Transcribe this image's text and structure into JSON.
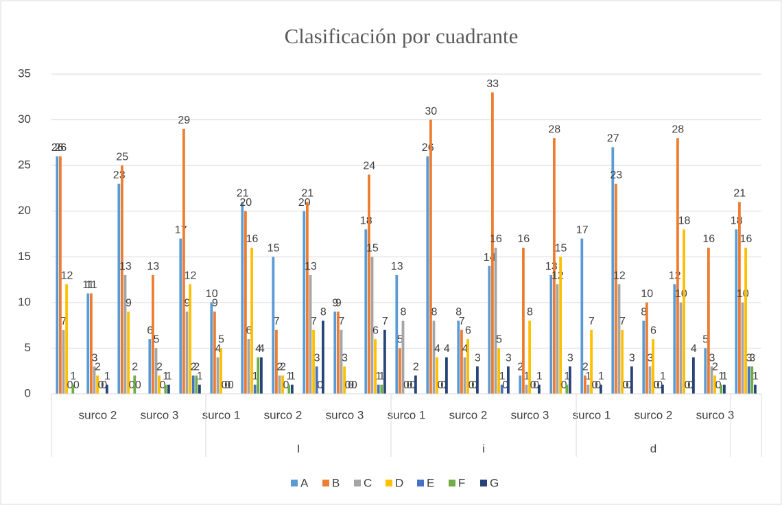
{
  "chart_data": {
    "type": "bar",
    "title": "Clasificación por cuadrante",
    "categories": [
      null,
      "surco 2",
      null,
      "surco 3",
      null,
      "surco 1",
      null,
      "surco 2",
      null,
      "surco 3",
      null,
      "surco 1",
      null,
      "surco 2",
      null,
      "surco 3",
      null,
      "surco 1",
      null,
      "surco 2",
      null,
      "surco 3",
      null
    ],
    "groups": [
      {
        "name": null,
        "size": 5
      },
      {
        "name": "I",
        "size": 6
      },
      {
        "name": "i",
        "size": 6
      },
      {
        "name": "d",
        "size": 5
      },
      {
        "name": null,
        "size": 1
      }
    ],
    "series": [
      {
        "name": "A",
        "color": "#5b9bd5",
        "values": [
          26,
          11,
          23,
          6,
          17,
          10,
          21,
          15,
          20,
          9,
          18,
          13,
          26,
          8,
          14,
          2,
          13,
          17,
          27,
          8,
          12,
          5,
          18
        ]
      },
      {
        "name": "B",
        "color": "#ed7d31",
        "values": [
          26,
          11,
          25,
          13,
          29,
          9,
          20,
          7,
          21,
          9,
          24,
          5,
          30,
          7,
          33,
          16,
          28,
          2,
          23,
          10,
          28,
          16,
          21
        ]
      },
      {
        "name": "C",
        "color": "#a5a5a5",
        "values": [
          7,
          3,
          13,
          5,
          9,
          4,
          6,
          2,
          13,
          7,
          15,
          8,
          8,
          4,
          16,
          1,
          12,
          1,
          12,
          3,
          10,
          3,
          10
        ]
      },
      {
        "name": "D",
        "color": "#ffc000",
        "values": [
          12,
          2,
          9,
          2,
          12,
          5,
          16,
          2,
          7,
          3,
          6,
          0,
          4,
          6,
          5,
          8,
          15,
          7,
          7,
          6,
          18,
          2,
          16
        ]
      },
      {
        "name": "E",
        "color": "#4472c4",
        "values": [
          0,
          0,
          0,
          0,
          2,
          0,
          1,
          0,
          3,
          0,
          1,
          0,
          0,
          0,
          1,
          0,
          0,
          0,
          0,
          0,
          0,
          0,
          3
        ]
      },
      {
        "name": "F",
        "color": "#70ad47",
        "values": [
          1,
          0,
          2,
          1,
          2,
          0,
          4,
          1,
          0,
          0,
          1,
          0,
          0,
          0,
          0,
          0,
          1,
          0,
          0,
          0,
          0,
          1,
          3
        ]
      },
      {
        "name": "G",
        "color": "#264478",
        "values": [
          0,
          1,
          0,
          1,
          1,
          0,
          4,
          1,
          8,
          0,
          7,
          2,
          4,
          3,
          3,
          1,
          3,
          1,
          3,
          1,
          4,
          1,
          1
        ]
      }
    ],
    "ylim": [
      0,
      35
    ],
    "yticks": [
      0,
      5,
      10,
      15,
      20,
      25,
      30,
      35
    ],
    "grid": true,
    "legend": "bottom"
  }
}
